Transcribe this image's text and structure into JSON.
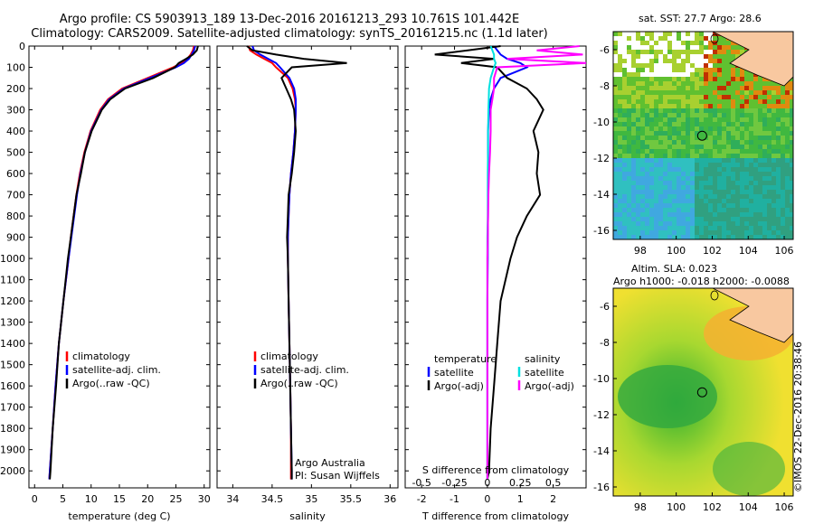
{
  "header": {
    "line1": "Argo profile: CS 5903913_189 13-Dec-2016 20161213_293 10.761S 101.442E",
    "line2": "Climatology: CARS2009. Satellite-adjusted climatology: synTS_20161215.nc (1.1d later)"
  },
  "credit": "©IMOS 22-Dec-2016 20:38:46",
  "colors": {
    "climatology": "#ff0000",
    "satellite": "#0000ff",
    "argo": "#000000",
    "sat_s": "#00e0e0",
    "argo_s": "#ff00ff"
  },
  "chart_data": [
    {
      "type": "line",
      "name": "temperature",
      "xlabel": "temperature (deg C)",
      "ylabel": "",
      "xlim": [
        -1,
        31
      ],
      "ylim": [
        2080,
        0
      ],
      "xticks": [
        0,
        5,
        10,
        15,
        20,
        25,
        30
      ],
      "yticks": [
        0,
        100,
        200,
        300,
        400,
        500,
        600,
        700,
        800,
        900,
        1000,
        1100,
        1200,
        1300,
        1400,
        1500,
        1600,
        1700,
        1800,
        1900,
        2000
      ],
      "legend": {
        "placement": "bottom-center",
        "entries": [
          "climatology",
          "satellite-adj. clim.",
          "Argo(..raw -QC)"
        ]
      },
      "depth": [
        0,
        20,
        40,
        60,
        80,
        100,
        150,
        200,
        250,
        300,
        400,
        500,
        600,
        700,
        800,
        900,
        1000,
        1200,
        1400,
        1600,
        1800,
        2000,
        2040
      ],
      "series": [
        {
          "name": "climatology",
          "values": [
            28.2,
            28.0,
            27.6,
            27.0,
            26.0,
            24.5,
            20.0,
            15.5,
            13.0,
            11.6,
            9.9,
            8.8,
            8.0,
            7.4,
            6.9,
            6.4,
            6.0,
            5.1,
            4.3,
            3.7,
            3.2,
            2.7,
            2.6
          ]
        },
        {
          "name": "satellite-adj. clim.",
          "values": [
            28.4,
            28.2,
            27.8,
            27.3,
            26.4,
            25.0,
            20.4,
            15.8,
            13.2,
            11.8,
            10.0,
            8.9,
            8.1,
            7.5,
            7.0,
            6.5,
            6.0,
            5.1,
            4.3,
            3.7,
            3.2,
            2.7,
            2.6
          ]
        },
        {
          "name": "Argo(..raw -QC)",
          "values": [
            28.9,
            28.7,
            28.0,
            26.8,
            25.5,
            24.8,
            21.0,
            16.0,
            13.4,
            11.9,
            10.1,
            8.9,
            8.2,
            7.4,
            6.9,
            6.4,
            5.9,
            5.1,
            4.3,
            3.8,
            3.2,
            2.8,
            2.7
          ]
        }
      ]
    },
    {
      "type": "line",
      "name": "salinity",
      "xlabel": "salinity",
      "xlim": [
        33.8,
        36.1
      ],
      "ylim": [
        2080,
        0
      ],
      "xticks": [
        34,
        34.5,
        35,
        35.5,
        36
      ],
      "legend": {
        "placement": "bottom-center",
        "entries": [
          "climatology",
          "satellite-adj. clim.",
          "Argo(..raw -QC)"
        ]
      },
      "annotation": [
        "Argo Australia",
        "PI: Susan Wijffels"
      ],
      "depth": [
        0,
        20,
        40,
        60,
        80,
        100,
        150,
        200,
        250,
        300,
        400,
        500,
        600,
        700,
        800,
        900,
        1000,
        1200,
        1400,
        1600,
        1800,
        2000,
        2040
      ],
      "series": [
        {
          "name": "climatology",
          "values": [
            34.2,
            34.22,
            34.3,
            34.4,
            34.5,
            34.55,
            34.7,
            34.76,
            34.79,
            34.8,
            34.79,
            34.77,
            34.74,
            34.72,
            34.71,
            34.7,
            34.7,
            34.71,
            34.72,
            34.73,
            34.74,
            34.74,
            34.74
          ]
        },
        {
          "name": "satellite-adj. clim.",
          "values": [
            34.25,
            34.27,
            34.35,
            34.45,
            34.55,
            34.6,
            34.72,
            34.78,
            34.8,
            34.8,
            34.79,
            34.77,
            34.74,
            34.72,
            34.71,
            34.7,
            34.7,
            34.71,
            34.72,
            34.73,
            34.74,
            34.75,
            34.75
          ]
        },
        {
          "name": "Argo(..raw -QC)",
          "values": [
            34.18,
            34.25,
            34.55,
            34.9,
            35.45,
            34.75,
            34.62,
            34.68,
            34.74,
            34.78,
            34.8,
            34.78,
            34.75,
            34.71,
            34.7,
            34.69,
            34.7,
            34.71,
            34.72,
            34.73,
            34.74,
            34.75,
            34.75
          ]
        }
      ]
    },
    {
      "type": "line",
      "name": "difference",
      "xlabel": "T difference from climatology",
      "xlabel2": "S difference from climatology",
      "xlim": [
        -2.5,
        3.0
      ],
      "ylim": [
        2080,
        0
      ],
      "xticks": [
        -2,
        -1,
        0,
        1,
        2
      ],
      "xticks2": [
        "-0.5",
        "-0.25",
        "0",
        "0.25",
        "0.5"
      ],
      "xticks2_pos": [
        -2,
        -1,
        0,
        1,
        2
      ],
      "legend": {
        "placement": "bottom-center",
        "groups": [
          {
            "title": "temperature",
            "entries": [
              "satellite",
              "Argo(-adj)"
            ]
          },
          {
            "title": "salinity",
            "entries": [
              "satellite",
              "Argo(-adj)"
            ]
          }
        ]
      },
      "depth": [
        0,
        20,
        40,
        60,
        80,
        100,
        150,
        200,
        250,
        300,
        400,
        500,
        600,
        700,
        800,
        900,
        1000,
        1200,
        1400,
        1600,
        1800,
        2000,
        2040
      ],
      "series": [
        {
          "name": "temperature satellite",
          "values": [
            0.2,
            0.3,
            0.4,
            0.6,
            1.0,
            1.2,
            0.4,
            0.2,
            0.1,
            0.05,
            0.02,
            0.02,
            0.02,
            0.02,
            0.02,
            0.01,
            0.01,
            0.0,
            0.0,
            0.0,
            0.0,
            0.0,
            0.0
          ]
        },
        {
          "name": "temperature Argo(-adj)",
          "values": [
            0.4,
            -0.6,
            -1.6,
            0.2,
            -0.8,
            0.3,
            0.6,
            1.2,
            1.5,
            1.7,
            1.4,
            1.55,
            1.5,
            1.6,
            1.2,
            0.9,
            0.7,
            0.4,
            0.3,
            0.2,
            0.1,
            0.05,
            0.0
          ]
        },
        {
          "name": "salinity satellite",
          "values": [
            0.1,
            0.15,
            0.2,
            0.2,
            0.25,
            0.2,
            0.1,
            0.05,
            0.04,
            0.03,
            0.02,
            0.02,
            0.01,
            0.01,
            0.01,
            0.0,
            0.0,
            0.0,
            0.0,
            0.0,
            0.0,
            0.0,
            0.0
          ]
        },
        {
          "name": "salinity Argo(-adj)",
          "values": [
            2.8,
            1.5,
            2.9,
            0.6,
            3.0,
            0.3,
            0.2,
            0.2,
            0.15,
            0.1,
            0.1,
            0.08,
            0.05,
            0.03,
            0.02,
            0.01,
            0.0,
            0.0,
            0.0,
            0.0,
            0.0,
            0.0,
            0.0
          ]
        }
      ]
    },
    {
      "type": "heatmap",
      "name": "sst-map",
      "title": "sat. SST: 27.7 Argo: 28.6",
      "xlim": [
        96.5,
        106.5
      ],
      "ylim": [
        -16.5,
        -5
      ],
      "xticks": [
        98,
        100,
        102,
        104,
        106
      ],
      "yticks": [
        -6,
        -8,
        -10,
        -12,
        -14,
        -16
      ],
      "argo_position": [
        101.442,
        -10.761
      ]
    },
    {
      "type": "heatmap",
      "name": "sla-map",
      "title": "Altim. SLA: 0.023",
      "subtitle": "Argo h1000: -0.018 h2000: -0.0088",
      "xlim": [
        96.5,
        106.5
      ],
      "ylim": [
        -16.5,
        -5
      ],
      "xticks": [
        98,
        100,
        102,
        104,
        106
      ],
      "yticks": [
        -6,
        -8,
        -10,
        -12,
        -14,
        -16
      ],
      "argo_position": [
        101.442,
        -10.761
      ]
    }
  ]
}
